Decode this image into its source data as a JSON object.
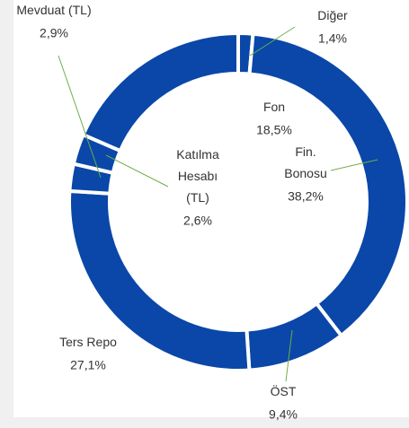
{
  "chart_data": {
    "type": "donut",
    "categories": [
      "Diğer",
      "Fin.\nBonosu",
      "ÖST",
      "Ters Repo",
      "Katılma\nHesabı\n(TL)",
      "Mevduat (TL)",
      "Fon"
    ],
    "values": [
      1.4,
      38.2,
      9.4,
      27.1,
      2.6,
      2.9,
      18.5
    ],
    "value_labels": [
      "1,4%",
      "38,2%",
      "9,4%",
      "27,1%",
      "2,6%",
      "2,9%",
      "18,5%"
    ],
    "color": "#0a47a9"
  }
}
